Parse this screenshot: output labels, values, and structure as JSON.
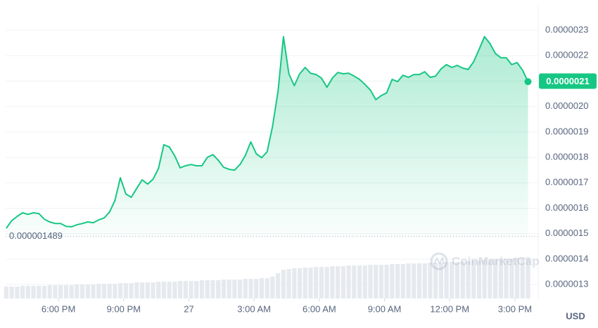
{
  "chart_data": {
    "type": "line",
    "x": [
      15.6,
      15.85,
      16.1,
      16.35,
      16.6,
      16.85,
      17.1,
      17.35,
      17.6,
      17.85,
      18.1,
      18.35,
      18.6,
      18.85,
      19.1,
      19.35,
      19.6,
      19.85,
      20.1,
      20.35,
      20.6,
      20.85,
      21.1,
      21.35,
      21.6,
      21.85,
      22.1,
      22.35,
      22.6,
      22.85,
      23.1,
      23.35,
      23.6,
      23.85,
      24.1,
      24.35,
      24.6,
      24.85,
      25.1,
      25.35,
      25.6,
      25.85,
      26.1,
      26.35,
      26.6,
      26.85,
      27.1,
      27.35,
      27.6,
      27.85,
      28.1,
      28.35,
      28.6,
      28.85,
      29.1,
      29.35,
      29.6,
      29.85,
      30.1,
      30.35,
      30.6,
      30.85,
      31.1,
      31.35,
      31.6,
      31.85,
      32.1,
      32.35,
      32.6,
      32.85,
      33.1,
      33.35,
      33.6,
      33.85,
      34.1,
      34.35,
      34.6,
      34.85,
      35.1,
      35.35,
      35.6,
      35.85,
      36.1,
      36.35,
      36.6,
      36.85,
      37.1,
      37.35,
      37.6,
      37.85,
      38.1,
      38.35,
      38.6,
      38.85,
      39.1,
      39.35,
      39.6
    ],
    "values": [
      1.521e-06,
      1.551e-06,
      1.568e-06,
      1.582e-06,
      1.576e-06,
      1.582e-06,
      1.579e-06,
      1.557e-06,
      1.546e-06,
      1.54e-06,
      1.54e-06,
      1.529e-06,
      1.527e-06,
      1.535e-06,
      1.54e-06,
      1.546e-06,
      1.543e-06,
      1.554e-06,
      1.562e-06,
      1.585e-06,
      1.631e-06,
      1.72e-06,
      1.656e-06,
      1.643e-06,
      1.678e-06,
      1.712e-06,
      1.695e-06,
      1.714e-06,
      1.756e-06,
      1.85e-06,
      1.841e-06,
      1.806e-06,
      1.759e-06,
      1.767e-06,
      1.772e-06,
      1.767e-06,
      1.767e-06,
      1.8e-06,
      1.811e-06,
      1.789e-06,
      1.761e-06,
      1.753e-06,
      1.75e-06,
      1.772e-06,
      1.808e-06,
      1.861e-06,
      1.814e-06,
      1.799e-06,
      1.822e-06,
      1.922e-06,
      2.06e-06,
      2.275e-06,
      2.129e-06,
      2.082e-06,
      2.129e-06,
      2.154e-06,
      2.131e-06,
      2.126e-06,
      2.112e-06,
      2.076e-06,
      2.112e-06,
      2.134e-06,
      2.129e-06,
      2.131e-06,
      2.12e-06,
      2.107e-06,
      2.087e-06,
      2.065e-06,
      2.027e-06,
      2.043e-06,
      2.054e-06,
      2.107e-06,
      2.098e-06,
      2.123e-06,
      2.115e-06,
      2.126e-06,
      2.126e-06,
      2.137e-06,
      2.115e-06,
      2.12e-06,
      2.148e-06,
      2.165e-06,
      2.154e-06,
      2.162e-06,
      2.151e-06,
      2.146e-06,
      2.176e-06,
      2.225e-06,
      2.275e-06,
      2.248e-06,
      2.209e-06,
      2.192e-06,
      2.192e-06,
      2.165e-06,
      2.173e-06,
      2.143e-06,
      2.098e-06
    ],
    "volume": [
      17,
      17,
      17,
      18,
      18,
      18,
      18,
      18,
      19,
      19,
      19,
      19,
      19,
      20,
      20,
      20,
      20,
      21,
      21,
      21,
      21,
      22,
      22,
      22,
      23,
      23,
      23,
      23,
      24,
      24,
      24,
      24,
      25,
      25,
      25,
      25,
      26,
      26,
      26,
      26,
      27,
      27,
      27,
      27,
      28,
      28,
      28,
      29,
      29,
      31,
      36,
      41,
      42,
      43,
      43,
      44,
      44,
      45,
      45,
      45,
      46,
      46,
      46,
      47,
      47,
      47,
      47,
      48,
      48,
      48,
      48,
      49,
      49,
      49,
      50,
      50,
      50,
      50,
      51,
      51,
      51,
      52,
      52,
      52,
      53,
      53,
      54,
      54,
      55,
      55,
      56,
      56,
      57,
      57,
      58,
      58,
      59
    ],
    "color": "#16c784",
    "xlim": [
      15.57,
      40.07
    ],
    "xticks": [
      {
        "value": 18,
        "label": "6:00 PM"
      },
      {
        "value": 21,
        "label": "9:00 PM"
      },
      {
        "value": 24,
        "label": "27"
      },
      {
        "value": 27,
        "label": "3:00 AM"
      },
      {
        "value": 30,
        "label": "6:00 AM"
      },
      {
        "value": 33,
        "label": "9:00 AM"
      },
      {
        "value": 36,
        "label": "12:00 PM"
      },
      {
        "value": 39,
        "label": "3:00 PM"
      }
    ],
    "ylim": [
      1.245e-06,
      2.397e-06
    ],
    "yticks": [
      {
        "value": 2.3e-06,
        "label": "0.0000023"
      },
      {
        "value": 2.2e-06,
        "label": "0.0000022"
      },
      {
        "value": 2.1e-06,
        "label": "0.0000021"
      },
      {
        "value": 2e-06,
        "label": "0.0000020"
      },
      {
        "value": 1.9e-06,
        "label": "0.0000019"
      },
      {
        "value": 1.8e-06,
        "label": "0.0000018"
      },
      {
        "value": 1.7e-06,
        "label": "0.0000017"
      },
      {
        "value": 1.6e-06,
        "label": "0.0000016"
      },
      {
        "value": 1.5e-06,
        "label": "0.0000015"
      },
      {
        "value": 1.4e-06,
        "label": "0.0000014"
      },
      {
        "value": 1.3e-06,
        "label": "0.0000013"
      }
    ],
    "grid": true,
    "current_price": {
      "value": 2.1e-06,
      "label": "0.0000021"
    },
    "min_price": {
      "value": 1.489e-06,
      "label": "0.000001489"
    },
    "currency": "USD",
    "watermark": "CoinMarketCap"
  }
}
